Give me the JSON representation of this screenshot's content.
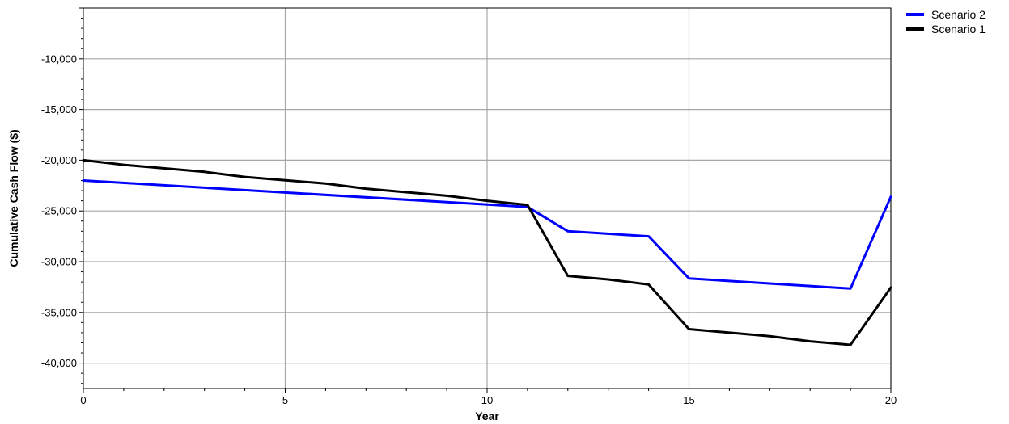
{
  "chart_data": {
    "type": "line",
    "title": "",
    "xlabel": "Year",
    "ylabel": "Cumulative Cash Flow ($)",
    "xlim": [
      0,
      20
    ],
    "ylim": [
      -42500,
      -5000
    ],
    "xticks": [
      0,
      5,
      10,
      15,
      20
    ],
    "yticks": [
      -40000,
      -35000,
      -30000,
      -25000,
      -20000,
      -15000,
      -10000
    ],
    "ytick_labels": [
      "-40,000",
      "-35,000",
      "-30,000",
      "-25,000",
      "-20,000",
      "-15,000",
      "-10,000"
    ],
    "grid": true,
    "legend_position": "top-right",
    "series": [
      {
        "name": "Scenario 2",
        "color": "#0000ff",
        "x": [
          0,
          11,
          12,
          14,
          15,
          19,
          20
        ],
        "values": [
          -22000,
          -24600,
          -27000,
          -27500,
          -31650,
          -32650,
          -23600
        ]
      },
      {
        "name": "Scenario 1",
        "color": "#000000",
        "x": [
          0,
          1,
          3,
          4,
          6,
          7,
          9,
          10,
          11,
          12,
          13,
          14,
          15,
          17,
          18,
          19,
          20
        ],
        "values": [
          -20000,
          -20450,
          -21150,
          -21650,
          -22300,
          -22800,
          -23500,
          -24000,
          -24400,
          -31400,
          -31750,
          -32250,
          -36650,
          -37350,
          -37850,
          -38200,
          -32550
        ]
      }
    ]
  }
}
